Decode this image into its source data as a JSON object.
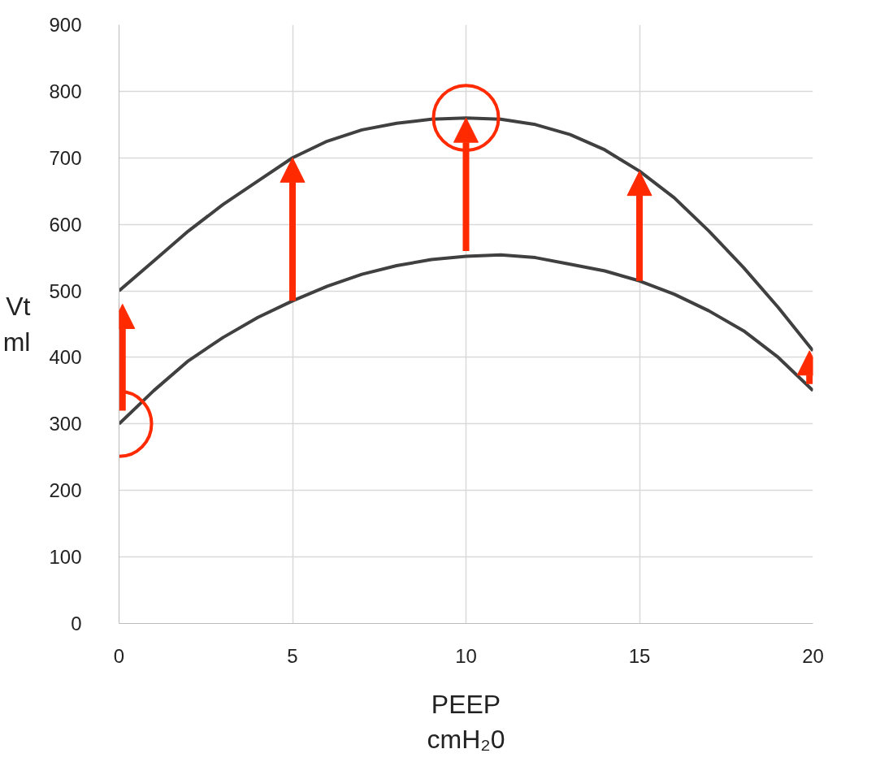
{
  "chart_data": {
    "type": "line",
    "xlabel": "PEEP\ncmH₂0",
    "ylabel": "Vt\nml",
    "x": [
      0,
      1,
      2,
      3,
      4,
      5,
      6,
      7,
      8,
      9,
      10,
      11,
      12,
      13,
      14,
      15,
      16,
      17,
      18,
      19,
      20
    ],
    "series": [
      {
        "color": "#404040",
        "values": [
          500,
          545,
          590,
          630,
          665,
          700,
          725,
          742,
          752,
          758,
          760,
          758,
          750,
          735,
          712,
          680,
          640,
          590,
          535,
          475,
          410
        ]
      },
      {
        "color": "#404040",
        "values": [
          300,
          350,
          395,
          430,
          460,
          485,
          507,
          525,
          538,
          547,
          552,
          554,
          550,
          540,
          530,
          515,
          495,
          470,
          440,
          400,
          350
        ]
      }
    ],
    "xlim": [
      0,
      20
    ],
    "xticks": [
      0,
      5,
      10,
      15,
      20
    ],
    "ylim": [
      0,
      900
    ],
    "yticks": [
      0,
      100,
      200,
      300,
      400,
      500,
      600,
      700,
      800,
      900
    ],
    "grid": true,
    "marker": "none",
    "line_style": "solid"
  }
}
